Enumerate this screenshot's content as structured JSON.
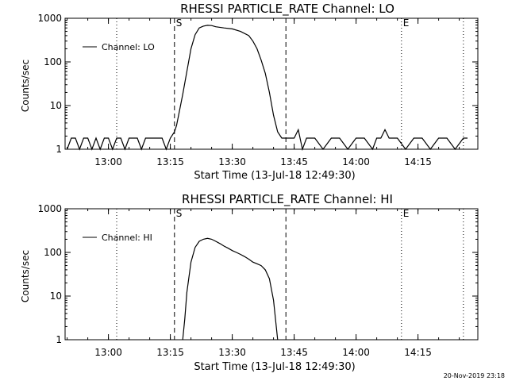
{
  "footer_timestamp": "20-Nov-2019 23:18",
  "chart_data": [
    {
      "type": "line",
      "title": "RHESSI PARTICLE_RATE Channel: LO",
      "xlabel": "Start Time (13-Jul-18 12:49:30)",
      "ylabel": "Counts/sec",
      "y_scale": "log",
      "ylim": [
        1,
        1000
      ],
      "xlim": [
        "12:49:30",
        "14:29:30"
      ],
      "x_ticks": [
        "13:00",
        "13:15",
        "13:30",
        "13:45",
        "14:00",
        "14:15"
      ],
      "y_ticks": [
        "1",
        "10",
        "100",
        "1000"
      ],
      "legend": {
        "placement": "top-left",
        "entries": [
          "Channel: LO"
        ]
      },
      "markers": [
        {
          "label": "S",
          "time": "13:16",
          "style": "dashed"
        },
        {
          "label": "",
          "time": "13:43",
          "style": "dashed"
        },
        {
          "label": "",
          "time": "13:02",
          "style": "dotted"
        },
        {
          "label": "E",
          "time": "14:11",
          "style": "dotted"
        },
        {
          "label": "",
          "time": "14:26",
          "style": "dotted"
        }
      ],
      "series": [
        {
          "name": "Channel: LO",
          "x": [
            "12:50:00",
            "12:51:00",
            "12:52:00",
            "12:53:00",
            "12:54:00",
            "12:55:00",
            "12:56:00",
            "12:57:00",
            "12:58:00",
            "12:59:00",
            "13:00:00",
            "13:01:00",
            "13:02:00",
            "13:03:00",
            "13:04:00",
            "13:05:00",
            "13:06:00",
            "13:07:00",
            "13:08:00",
            "13:09:00",
            "13:10:00",
            "13:11:00",
            "13:12:00",
            "13:13:00",
            "13:14:00",
            "13:15:00",
            "13:16:00",
            "13:16:30",
            "13:17:00",
            "13:18:00",
            "13:19:00",
            "13:20:00",
            "13:21:00",
            "13:22:00",
            "13:23:00",
            "13:24:00",
            "13:25:00",
            "13:26:00",
            "13:28:00",
            "13:30:00",
            "13:32:00",
            "13:34:00",
            "13:35:00",
            "13:36:00",
            "13:37:00",
            "13:38:00",
            "13:39:00",
            "13:40:00",
            "13:41:00",
            "13:42:00",
            "13:43:00",
            "13:44:00",
            "13:45:00",
            "13:46:00",
            "13:47:00",
            "13:48:00",
            "13:50:00",
            "13:52:00",
            "13:54:00",
            "13:56:00",
            "13:58:00",
            "14:00:00",
            "14:02:00",
            "14:04:00",
            "14:05:00",
            "14:06:00",
            "14:07:00",
            "14:08:00",
            "14:10:00",
            "14:12:00",
            "14:14:00",
            "14:16:00",
            "14:18:00",
            "14:20:00",
            "14:22:00",
            "14:24:00",
            "14:26:00",
            "14:27:00"
          ],
          "y": [
            1,
            1.8,
            1.8,
            1,
            1.8,
            1.8,
            1,
            1.8,
            1,
            1.8,
            1.8,
            1,
            1.8,
            1.8,
            1,
            1.8,
            1.8,
            1.8,
            1,
            1.8,
            1.8,
            1.8,
            1.8,
            1.8,
            1,
            1.8,
            2.5,
            3.5,
            6,
            18,
            60,
            200,
            420,
            600,
            660,
            690,
            680,
            640,
            600,
            570,
            500,
            400,
            300,
            200,
            110,
            55,
            20,
            6,
            2.5,
            1.8,
            1.8,
            1.8,
            1.8,
            2.8,
            1,
            1.8,
            1.8,
            1,
            1.8,
            1.8,
            1,
            1.8,
            1.8,
            1,
            1.8,
            1.8,
            2.8,
            1.8,
            1.8,
            1,
            1.8,
            1.8,
            1,
            1.8,
            1.8,
            1,
            1.8,
            1.8
          ]
        }
      ]
    },
    {
      "type": "line",
      "title": "RHESSI PARTICLE_RATE Channel: HI",
      "xlabel": "Start Time (13-Jul-18 12:49:30)",
      "ylabel": "Counts/sec",
      "y_scale": "log",
      "ylim": [
        1,
        1000
      ],
      "xlim": [
        "12:49:30",
        "14:29:30"
      ],
      "x_ticks": [
        "13:00",
        "13:15",
        "13:30",
        "13:45",
        "14:00",
        "14:15"
      ],
      "y_ticks": [
        "1",
        "10",
        "100",
        "1000"
      ],
      "legend": {
        "placement": "top-left",
        "entries": [
          "Channel: HI"
        ]
      },
      "markers": [
        {
          "label": "S",
          "time": "13:16",
          "style": "dashed"
        },
        {
          "label": "",
          "time": "13:43",
          "style": "dashed"
        },
        {
          "label": "",
          "time": "13:02",
          "style": "dotted"
        },
        {
          "label": "E",
          "time": "14:11",
          "style": "dotted"
        },
        {
          "label": "",
          "time": "14:26",
          "style": "dotted"
        }
      ],
      "series": [
        {
          "name": "Channel: HI",
          "x": [
            "13:18:00",
            "13:18:30",
            "13:19:00",
            "13:20:00",
            "13:21:00",
            "13:22:00",
            "13:23:00",
            "13:24:00",
            "13:25:00",
            "13:26:00",
            "13:27:00",
            "13:28:00",
            "13:29:00",
            "13:30:00",
            "13:31:00",
            "13:32:00",
            "13:33:00",
            "13:34:00",
            "13:35:00",
            "13:36:00",
            "13:37:00",
            "13:38:00",
            "13:39:00",
            "13:40:00",
            "13:41:00"
          ],
          "y": [
            1,
            3,
            12,
            60,
            130,
            180,
            200,
            210,
            200,
            180,
            160,
            140,
            125,
            110,
            100,
            90,
            80,
            70,
            60,
            55,
            50,
            40,
            25,
            8,
            1
          ]
        }
      ]
    }
  ]
}
